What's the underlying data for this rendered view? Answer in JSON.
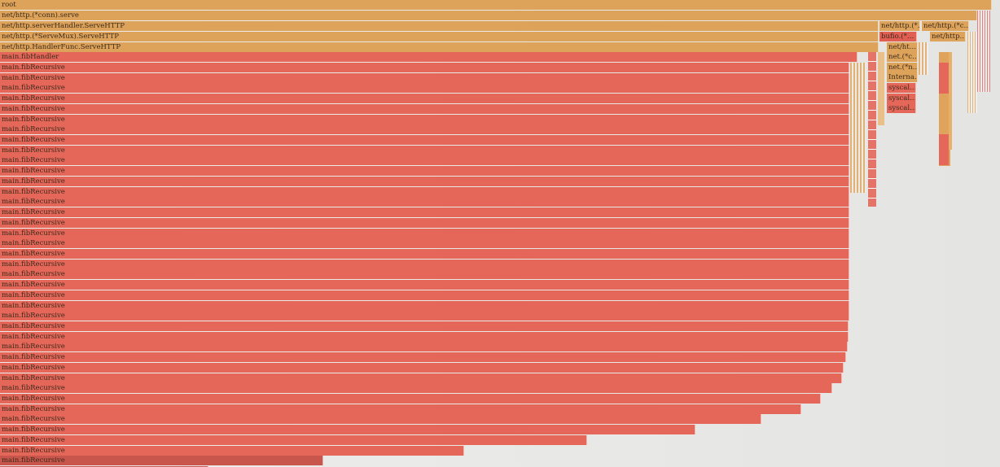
{
  "frames": {
    "root": "root",
    "conn_serve": "net/http.(*conn).serve",
    "server_handler": "net/http.serverHandler.ServeHTTP",
    "serve_mux": "net/http.(*ServeMux).ServeHTTP",
    "handler_func": "net/http.HandlerFunc.ServeHTTP",
    "fib_handler": "main.fibHandler",
    "fib_recursive": "main.fibRecursive",
    "net_http_a": "net/http.(*…",
    "net_http_b": "net/http.(*c…",
    "net_http_c": "net/http…",
    "bufio": "bufio.(*…",
    "net_ht": "net/ht…",
    "net_c": "net.(*c…",
    "net_n": "net.(*n…",
    "interna": "Interna…",
    "syscall": "syscal…"
  },
  "palette": {
    "tan": "#dea35a",
    "red": "#e5675a",
    "dark_red": "#c9564c",
    "background": "#e9e9e7"
  }
}
